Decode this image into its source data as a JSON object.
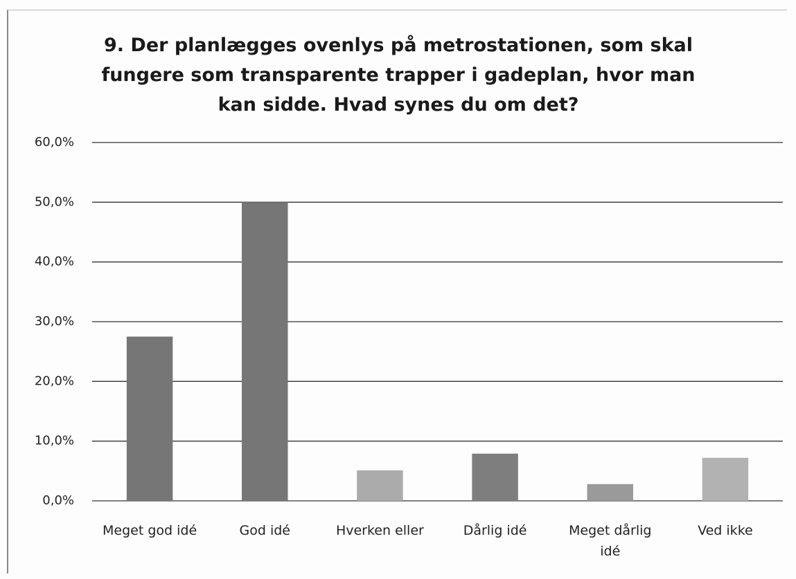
{
  "chart_data": {
    "type": "bar",
    "title": "9. Der planlægges ovenlys på metrostationen, som skal fungere som transparente trapper i gadeplan, hvor man kan sidde. Hvad synes du om det?",
    "categories": [
      "Meget god idé",
      "God idé",
      "Hverken eller",
      "Dårlig idé",
      "Meget dårlig idé",
      "Ved ikke"
    ],
    "values": [
      27.5,
      50.0,
      5.1,
      7.9,
      2.8,
      7.2
    ],
    "colors": [
      "#767676",
      "#767676",
      "#ababab",
      "#7e7e7e",
      "#9a9a9a",
      "#b2b2b2"
    ],
    "ylim": [
      0,
      60
    ],
    "yticks": [
      {
        "value": 0,
        "label": "0,0%"
      },
      {
        "value": 10,
        "label": "10,0%"
      },
      {
        "value": 20,
        "label": "20,0%"
      },
      {
        "value": 30,
        "label": "30,0%"
      },
      {
        "value": 40,
        "label": "40,0%"
      },
      {
        "value": 50,
        "label": "50,0%"
      },
      {
        "value": 60,
        "label": "60,0%"
      }
    ],
    "grid": true
  }
}
